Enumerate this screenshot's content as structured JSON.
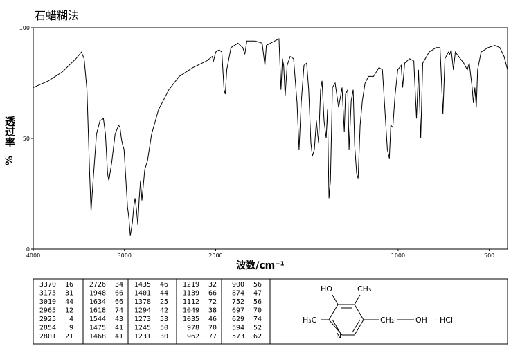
{
  "chart_data": {
    "type": "line",
    "title": "石蜡糊法",
    "y_label": "透过率",
    "y_unit": "%",
    "x_label": "波数/cm⁻¹",
    "xlim": [
      4000,
      400
    ],
    "x_scale_change": 2000,
    "xticks": [
      4000,
      3000,
      2000,
      1000,
      500
    ],
    "ylim": [
      0,
      100
    ],
    "yticks": [
      0,
      50,
      100
    ],
    "color": "#000000",
    "x": [
      4000,
      3834,
      3683,
      3532,
      3472,
      3442,
      3411,
      3381,
      3366,
      3343,
      3306,
      3268,
      3230,
      3208,
      3185,
      3170,
      3140,
      3102,
      3064,
      3049,
      3034,
      3019,
      3004,
      2988,
      2966,
      2951,
      2936,
      2913,
      2898,
      2883,
      2868,
      2853,
      2838,
      2823,
      2808,
      2777,
      2747,
      2702,
      2626,
      2513,
      2400,
      2249,
      2098,
      2038,
      2023,
      2000,
      1981,
      1966,
      1954,
      1947,
      1939,
      1916,
      1878,
      1851,
      1840,
      1829,
      1783,
      1745,
      1730,
      1722,
      1676,
      1653,
      1642,
      1634,
      1627,
      1619,
      1608,
      1592,
      1573,
      1554,
      1543,
      1531,
      1516,
      1501,
      1490,
      1478,
      1470,
      1459,
      1448,
      1436,
      1425,
      1417,
      1406,
      1394,
      1387,
      1379,
      1371,
      1360,
      1345,
      1326,
      1307,
      1295,
      1288,
      1276,
      1269,
      1257,
      1246,
      1238,
      1227,
      1219,
      1208,
      1196,
      1181,
      1162,
      1135,
      1105,
      1086,
      1059,
      1048,
      1040,
      1029,
      1017,
      1002,
      983,
      975,
      964,
      937,
      914,
      899,
      888,
      876,
      865,
      830,
      792,
      770,
      754,
      743,
      724,
      716,
      709,
      697,
      686,
      659,
      640,
      621,
      610,
      594,
      587,
      579,
      571,
      564,
      545,
      507,
      469,
      442,
      419,
      400
    ],
    "values": [
      73,
      76,
      80,
      86,
      89,
      86,
      72,
      34,
      17,
      31,
      52,
      58,
      59,
      52,
      34,
      31,
      39,
      52,
      56,
      55,
      50,
      47,
      45,
      34,
      19,
      14,
      6,
      12,
      19,
      23,
      18,
      11,
      23,
      31,
      22,
      36,
      40,
      52,
      63,
      72,
      78,
      82,
      85,
      87,
      85,
      89,
      90,
      89,
      72,
      70,
      81,
      91,
      93,
      91,
      88,
      94,
      94,
      93,
      83,
      92,
      94,
      95,
      72,
      86,
      83,
      69,
      83,
      87,
      86,
      66,
      45,
      66,
      83,
      84,
      72,
      48,
      42,
      45,
      58,
      48,
      72,
      76,
      58,
      50,
      63,
      23,
      31,
      73,
      75,
      64,
      73,
      53,
      70,
      72,
      45,
      67,
      72,
      47,
      34,
      32,
      56,
      67,
      75,
      78,
      78,
      82,
      81,
      45,
      41,
      56,
      55,
      69,
      81,
      83,
      73,
      84,
      86,
      85,
      59,
      81,
      50,
      84,
      89,
      91,
      91,
      61,
      86,
      89,
      88,
      90,
      81,
      89,
      86,
      84,
      81,
      84,
      73,
      66,
      73,
      64,
      81,
      89,
      91,
      92,
      91,
      87,
      81
    ]
  },
  "peak_table": {
    "columns": [
      [
        [
          3370,
          16
        ],
        [
          3175,
          31
        ],
        [
          3010,
          44
        ],
        [
          2965,
          12
        ],
        [
          2925,
          4
        ],
        [
          2854,
          9
        ],
        [
          2801,
          21
        ]
      ],
      [
        [
          2726,
          34
        ],
        [
          1948,
          66
        ],
        [
          1634,
          66
        ],
        [
          1618,
          74
        ],
        [
          1544,
          43
        ],
        [
          1475,
          41
        ],
        [
          1468,
          41
        ]
      ],
      [
        [
          1435,
          46
        ],
        [
          1401,
          44
        ],
        [
          1378,
          25
        ],
        [
          1294,
          42
        ],
        [
          1273,
          53
        ],
        [
          1245,
          50
        ],
        [
          1231,
          30
        ]
      ],
      [
        [
          1219,
          32
        ],
        [
          1139,
          66
        ],
        [
          1112,
          72
        ],
        [
          1049,
          38
        ],
        [
          1035,
          46
        ],
        [
          978,
          70
        ],
        [
          962,
          77
        ]
      ],
      [
        [
          900,
          56
        ],
        [
          874,
          47
        ],
        [
          752,
          56
        ],
        [
          697,
          70
        ],
        [
          629,
          74
        ],
        [
          594,
          52
        ],
        [
          573,
          62
        ]
      ]
    ]
  },
  "structure": {
    "labels": [
      "HO",
      "CH₃",
      "H₃C",
      "N",
      "CH₂",
      "OH",
      "· HCl"
    ]
  }
}
